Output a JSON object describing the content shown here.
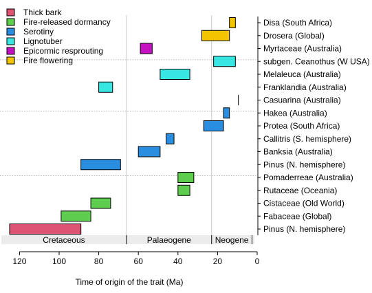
{
  "chart_data": {
    "type": "bar",
    "orientation": "horizontal-range",
    "xlabel": "Time of origin of the trait (Ma)",
    "xlim": [
      0,
      130
    ],
    "x_reversed": true,
    "x_ticks": [
      120,
      100,
      80,
      60,
      40,
      20,
      0
    ],
    "legend_position": "top-left",
    "categories": [
      "Disa (South Africa)",
      "Drosera (Global)",
      "Myrtaceae (Australia)",
      "subgen. Ceanothus (W USA)",
      "Melaleuca (Australia)",
      "Franklandia (Australia)",
      "Casuarina (Australia)",
      "Hakea (Australia)",
      "Protea (South Africa)",
      "Callitris (S. hemisphere)",
      "Banksia (Australia)",
      "Pinus (N. hemisphere)",
      "Pomaderreae (Australia)",
      "Rutaceae (Oceania)",
      "Cistaceae (Old World)",
      "Fabaceae (Global)",
      "Pinus (N. hemisphere)"
    ],
    "series": [
      {
        "name": "Thick bark",
        "color": "#dd5573"
      },
      {
        "name": "Fire-released dormancy",
        "color": "#5ecc4e"
      },
      {
        "name": "Serotiny",
        "color": "#2a8ee0"
      },
      {
        "name": "Lignotuber",
        "color": "#38e6e2"
      },
      {
        "name": "Epicormic resprouting",
        "color": "#c611c3"
      },
      {
        "name": "Fire flowering",
        "color": "#f5c400"
      }
    ],
    "bars": [
      {
        "row": 0,
        "series": 5,
        "start": 14,
        "end": 11
      },
      {
        "row": 1,
        "series": 5,
        "start": 28,
        "end": 14
      },
      {
        "row": 2,
        "series": 4,
        "start": 59,
        "end": 53
      },
      {
        "row": 3,
        "series": 3,
        "start": 22,
        "end": 11
      },
      {
        "row": 4,
        "series": 3,
        "start": 49,
        "end": 34
      },
      {
        "row": 5,
        "series": 3,
        "start": 80,
        "end": 73
      },
      {
        "row": 6,
        "series": 2,
        "start": 9.5,
        "end": 9.5
      },
      {
        "row": 7,
        "series": 2,
        "start": 17,
        "end": 14
      },
      {
        "row": 8,
        "series": 2,
        "start": 27,
        "end": 17
      },
      {
        "row": 9,
        "series": 2,
        "start": 46,
        "end": 42
      },
      {
        "row": 10,
        "series": 2,
        "start": 60,
        "end": 49
      },
      {
        "row": 11,
        "series": 2,
        "start": 89,
        "end": 69
      },
      {
        "row": 12,
        "series": 1,
        "start": 40,
        "end": 32
      },
      {
        "row": 13,
        "series": 1,
        "start": 40,
        "end": 34
      },
      {
        "row": 14,
        "series": 1,
        "start": 84,
        "end": 74
      },
      {
        "row": 15,
        "series": 1,
        "start": 99,
        "end": 84
      },
      {
        "row": 16,
        "series": 0,
        "start": 125,
        "end": 89
      }
    ],
    "row_groups_separators_after": [
      2,
      6,
      11
    ],
    "epochs": [
      {
        "name": "Cretaceous",
        "start": 130,
        "end": 66
      },
      {
        "name": "Palaeogene",
        "start": 66,
        "end": 23
      },
      {
        "name": "Neogene",
        "start": 23,
        "end": 2.6
      }
    ]
  }
}
